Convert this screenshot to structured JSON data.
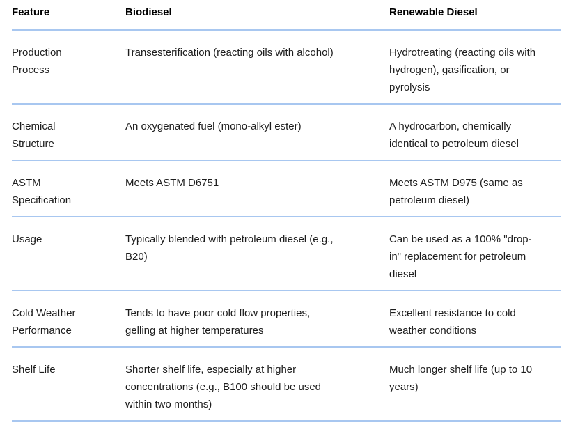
{
  "table": {
    "headers": {
      "feature": "Feature",
      "biodiesel": "Biodiesel",
      "renewable_diesel": "Renewable Diesel"
    },
    "rows": [
      {
        "feature": "Production Process",
        "biodiesel": "Transesterification (reacting oils with alcohol)",
        "renewable_diesel": "Hydrotreating (reacting oils with hydrogen), gasification, or pyrolysis"
      },
      {
        "feature": "Chemical Structure",
        "biodiesel": "An oxygenated fuel (mono-alkyl ester)",
        "renewable_diesel": "A hydrocarbon, chemically identical to petroleum diesel"
      },
      {
        "feature": "ASTM Specification",
        "biodiesel": "Meets ASTM D6751",
        "renewable_diesel": "Meets ASTM D975 (same as petroleum diesel)"
      },
      {
        "feature": "Usage",
        "biodiesel": "Typically blended with petroleum diesel (e.g., B20)",
        "renewable_diesel": "Can be used as a 100% \"drop-in\" replacement for petroleum diesel"
      },
      {
        "feature": "Cold Weather Performance",
        "biodiesel": "Tends to have poor cold flow properties, gelling at higher temperatures",
        "renewable_diesel": "Excellent resistance to cold weather conditions"
      },
      {
        "feature": "Shelf Life",
        "biodiesel": "Shorter shelf life, especially at higher concentrations (e.g., B100 should be used within two months)",
        "renewable_diesel": "Much longer shelf life (up to 10 years)"
      }
    ]
  },
  "colors": {
    "divider": "#a8c7f0",
    "text": "#1d1d1d",
    "header_text": "#000000",
    "background": "#ffffff"
  }
}
